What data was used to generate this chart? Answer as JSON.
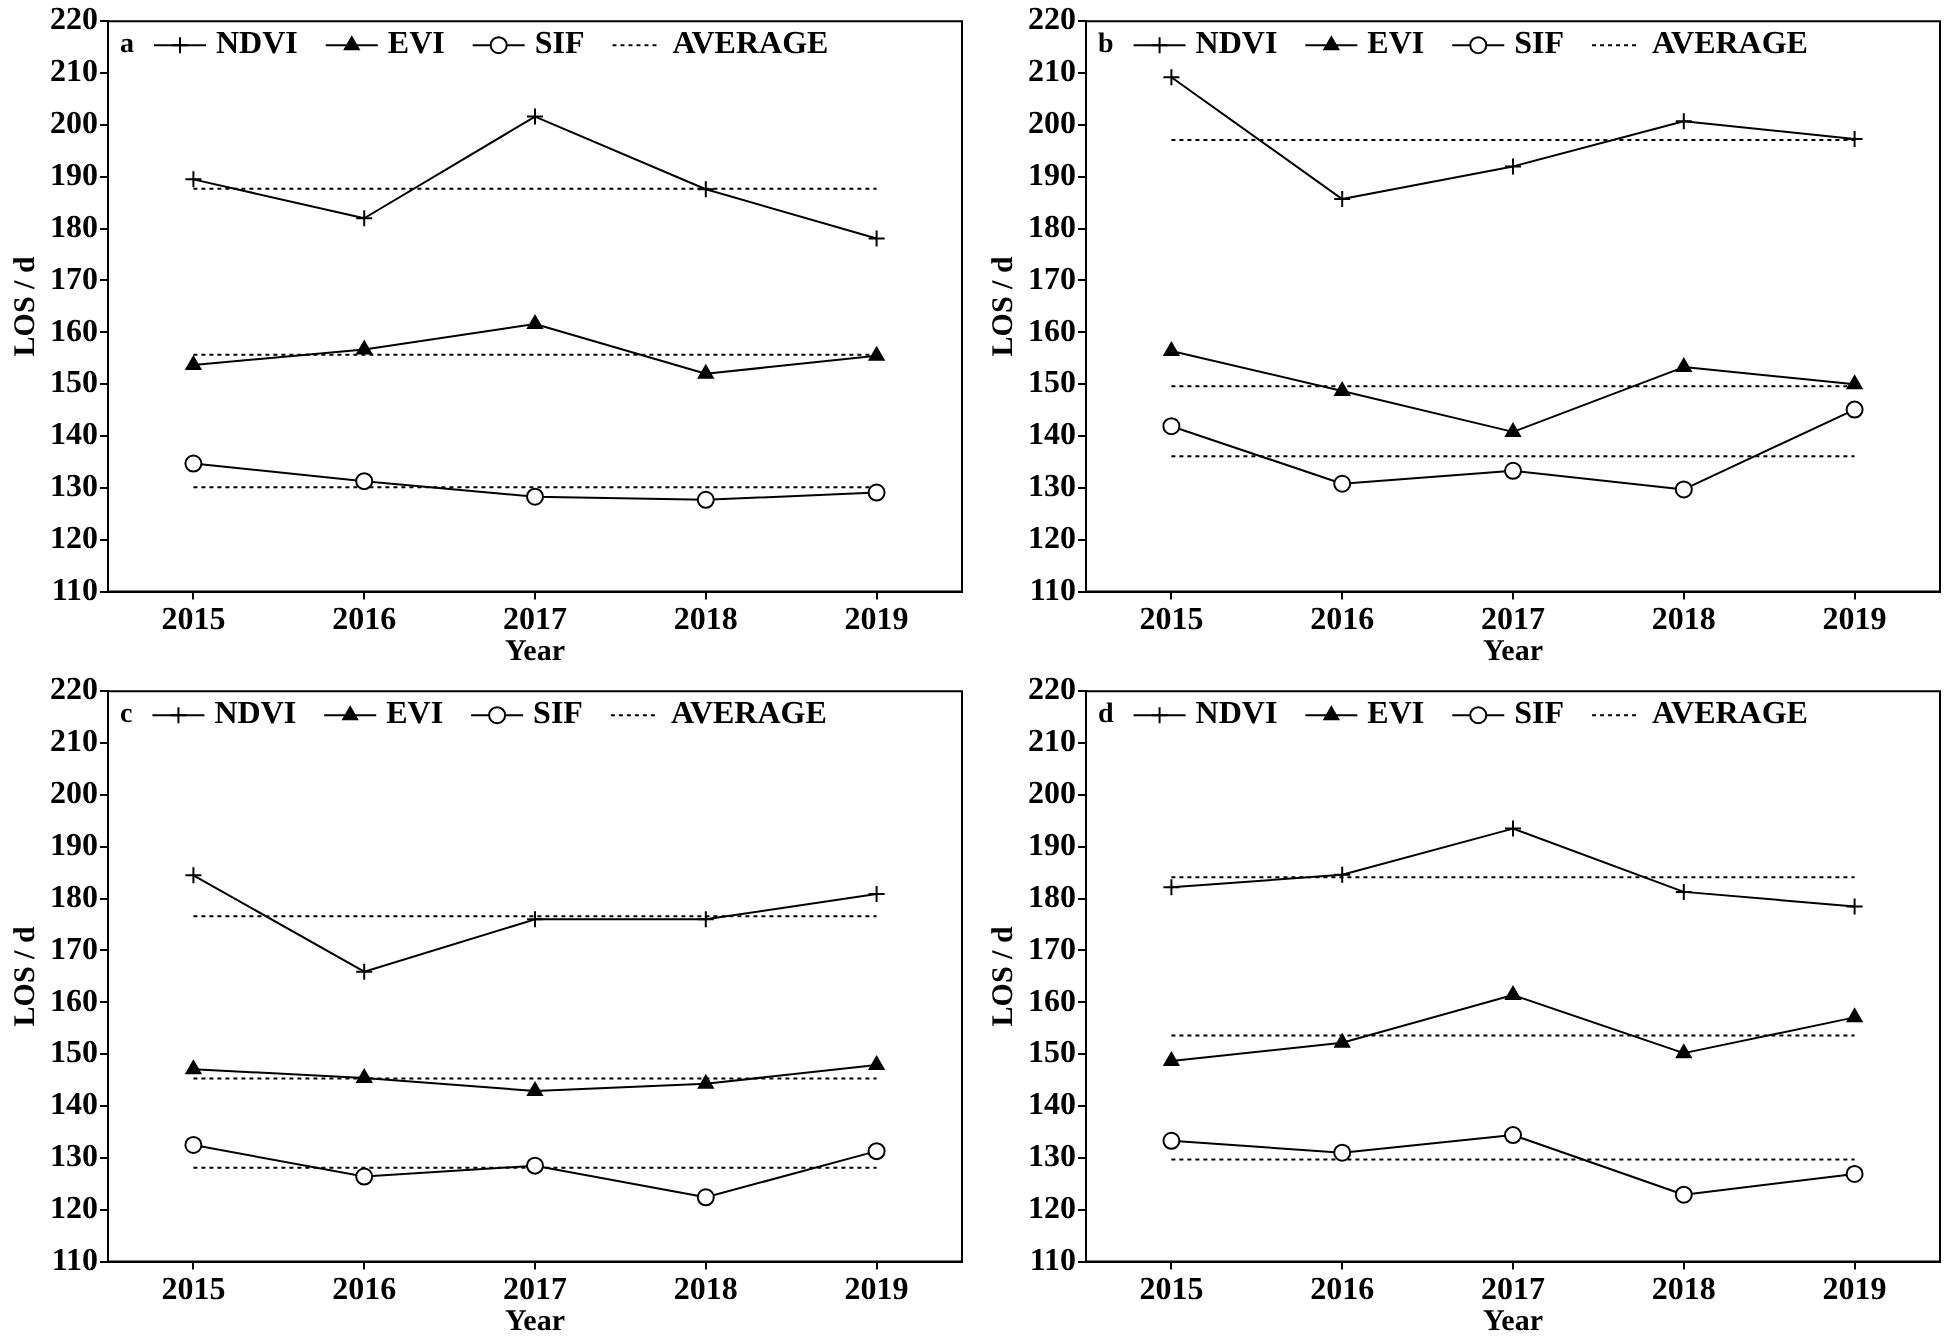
{
  "chart_data": [
    {
      "type": "line",
      "title": "a",
      "xlabel": "Year",
      "ylabel": "LOS / d",
      "categories": [
        "2015",
        "2016",
        "2017",
        "2018",
        "2019"
      ],
      "ylim": [
        110,
        220
      ],
      "yticks": [
        110,
        120,
        130,
        140,
        150,
        160,
        170,
        180,
        190,
        200,
        210,
        220
      ],
      "grid": false,
      "legend": "top",
      "line_style": "solid",
      "series": [
        {
          "name": "NDVI",
          "color": "#000000",
          "marker": "cross",
          "values": [
            189.5,
            182.0,
            201.6,
            187.6,
            178.1
          ]
        },
        {
          "name": "EVI",
          "color": "#000000",
          "marker": "triangle",
          "values": [
            153.7,
            156.7,
            161.6,
            152.0,
            155.5
          ]
        },
        {
          "name": "SIF",
          "color": "#000000",
          "marker": "circle",
          "values": [
            134.7,
            131.3,
            128.3,
            127.7,
            129.1
          ]
        }
      ],
      "ref_lines": [
        {
          "axis": "y",
          "value": 187.7,
          "label": "AVERAGE",
          "line_style": "dotted",
          "color": "#000000"
        },
        {
          "axis": "y",
          "value": 155.7,
          "line_style": "dotted",
          "color": "#000000"
        },
        {
          "axis": "y",
          "value": 130.1,
          "line_style": "dotted",
          "color": "#000000"
        }
      ]
    },
    {
      "type": "line",
      "title": "b",
      "xlabel": "Year",
      "ylabel": "LOS / d",
      "categories": [
        "2015",
        "2016",
        "2017",
        "2018",
        "2019"
      ],
      "ylim": [
        110,
        220
      ],
      "yticks": [
        110,
        120,
        130,
        140,
        150,
        160,
        170,
        180,
        190,
        200,
        210,
        220
      ],
      "grid": false,
      "legend": "top",
      "line_style": "solid",
      "series": [
        {
          "name": "NDVI",
          "color": "#000000",
          "marker": "cross",
          "values": [
            209.2,
            185.7,
            192.0,
            200.7,
            197.3
          ]
        },
        {
          "name": "EVI",
          "color": "#000000",
          "marker": "triangle",
          "values": [
            156.4,
            148.7,
            140.8,
            153.3,
            150.0
          ]
        },
        {
          "name": "SIF",
          "color": "#000000",
          "marker": "circle",
          "values": [
            141.9,
            130.8,
            133.3,
            129.7,
            145.1
          ]
        }
      ],
      "ref_lines": [
        {
          "axis": "y",
          "value": 197.1,
          "label": "AVERAGE",
          "line_style": "dotted",
          "color": "#000000"
        },
        {
          "axis": "y",
          "value": 149.6,
          "line_style": "dotted",
          "color": "#000000"
        },
        {
          "axis": "y",
          "value": 136.1,
          "line_style": "dotted",
          "color": "#000000"
        }
      ]
    },
    {
      "type": "line",
      "title": "c",
      "xlabel": "Year",
      "ylabel": "LOS / d",
      "categories": [
        "2015",
        "2016",
        "2017",
        "2018",
        "2019"
      ],
      "ylim": [
        110,
        220
      ],
      "yticks": [
        110,
        120,
        130,
        140,
        150,
        160,
        170,
        180,
        190,
        200,
        210,
        220
      ],
      "grid": false,
      "legend": "top",
      "line_style": "solid",
      "series": [
        {
          "name": "NDVI",
          "color": "#000000",
          "marker": "cross",
          "values": [
            184.5,
            165.9,
            176.0,
            176.0,
            180.9
          ]
        },
        {
          "name": "EVI",
          "color": "#000000",
          "marker": "triangle",
          "values": [
            147.1,
            145.4,
            142.9,
            144.3,
            147.9
          ]
        },
        {
          "name": "SIF",
          "color": "#000000",
          "marker": "circle",
          "values": [
            132.5,
            126.4,
            128.5,
            122.4,
            131.3
          ]
        }
      ],
      "ref_lines": [
        {
          "axis": "y",
          "value": 176.6,
          "label": "AVERAGE",
          "line_style": "dotted",
          "color": "#000000"
        },
        {
          "axis": "y",
          "value": 145.3,
          "line_style": "dotted",
          "color": "#000000"
        },
        {
          "axis": "y",
          "value": 128.1,
          "line_style": "dotted",
          "color": "#000000"
        }
      ]
    },
    {
      "type": "line",
      "title": "d",
      "xlabel": "Year",
      "ylabel": "LOS / d",
      "categories": [
        "2015",
        "2016",
        "2017",
        "2018",
        "2019"
      ],
      "ylim": [
        110,
        220
      ],
      "yticks": [
        110,
        120,
        130,
        140,
        150,
        160,
        170,
        180,
        190,
        200,
        210,
        220
      ],
      "grid": false,
      "legend": "top",
      "line_style": "solid",
      "series": [
        {
          "name": "NDVI",
          "color": "#000000",
          "marker": "cross",
          "values": [
            182.2,
            184.6,
            193.5,
            181.3,
            178.5
          ]
        },
        {
          "name": "EVI",
          "color": "#000000",
          "marker": "triangle",
          "values": [
            148.7,
            152.2,
            161.4,
            150.2,
            157.1
          ]
        },
        {
          "name": "SIF",
          "color": "#000000",
          "marker": "circle",
          "values": [
            133.3,
            131.0,
            134.4,
            122.9,
            126.9
          ]
        }
      ],
      "ref_lines": [
        {
          "axis": "y",
          "value": 184.1,
          "label": "AVERAGE",
          "line_style": "dotted",
          "color": "#000000"
        },
        {
          "axis": "y",
          "value": 153.6,
          "line_style": "dotted",
          "color": "#000000"
        },
        {
          "axis": "y",
          "value": 129.7,
          "line_style": "dotted",
          "color": "#000000"
        }
      ]
    }
  ]
}
